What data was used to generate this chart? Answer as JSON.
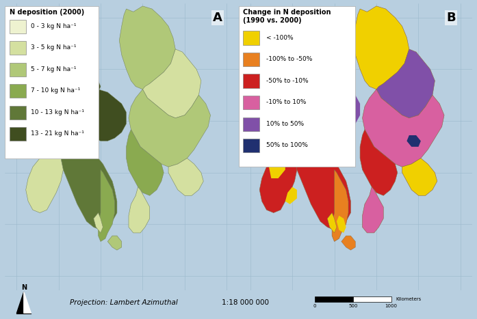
{
  "fig_width": 6.97,
  "fig_height": 4.67,
  "dpi": 100,
  "bg_color": "#b8cfe0",
  "map_bg": "#b8cfe0",
  "grid_color": "#9ab8cc",
  "panel_a": {
    "label": "A",
    "legend_title": "N deposition (2000)",
    "legend_items": [
      {
        "label": "0 - 3 kg N ha⁻¹",
        "color": "#eef2d0"
      },
      {
        "label": "3 - 5 kg N ha⁻¹",
        "color": "#d4e0a0"
      },
      {
        "label": "5 - 7 kg N ha⁻¹",
        "color": "#b0c878"
      },
      {
        "label": "7 - 10 kg N ha⁻¹",
        "color": "#8aaa50"
      },
      {
        "label": "10 - 13 kg N ha⁻¹",
        "color": "#607838"
      },
      {
        "label": "13 - 21 kg N ha⁻¹",
        "color": "#404e20"
      }
    ],
    "coast_color": "#a0a888",
    "border_color": "#c8d4a0"
  },
  "panel_b": {
    "label": "B",
    "legend_title": "Change in N deposition\n(1990 vs. 2000)",
    "legend_items": [
      {
        "label": "< -100%",
        "color": "#f0d000"
      },
      {
        "label": "-100% to -50%",
        "color": "#e88020"
      },
      {
        "label": "-50% to -10%",
        "color": "#cc2020"
      },
      {
        "label": "-10% to 10%",
        "color": "#d860a0"
      },
      {
        "label": "10% to 50%",
        "color": "#8050a8"
      },
      {
        "label": "50% to 100%",
        "color": "#203070"
      }
    ]
  },
  "bottom_projection": "Projection: Lambert Azimuthal",
  "bottom_scale": "1:18 000 000",
  "legend_fontsize": 6.5,
  "legend_title_fontsize": 7.0,
  "label_fontsize": 13
}
